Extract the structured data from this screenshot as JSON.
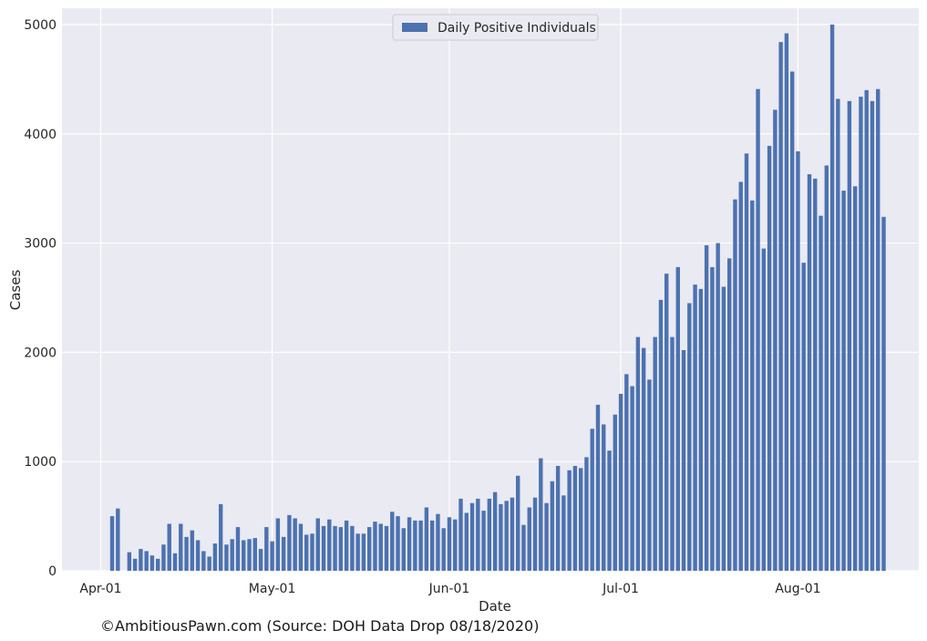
{
  "chart_data": {
    "type": "bar",
    "xlabel": "Date",
    "ylabel": "Cases",
    "legend": {
      "label": "Daily Positive Individuals",
      "position": "top-center"
    },
    "grid": true,
    "ylim": [
      0,
      5150
    ],
    "x_ticks": [
      {
        "date": "2020-04-01",
        "label": "Apr-01"
      },
      {
        "date": "2020-05-01",
        "label": "May-01"
      },
      {
        "date": "2020-06-01",
        "label": "Jun-01"
      },
      {
        "date": "2020-07-01",
        "label": "Jul-01"
      },
      {
        "date": "2020-08-01",
        "label": "Aug-01"
      }
    ],
    "y_ticks": [
      0,
      1000,
      2000,
      3000,
      4000,
      5000
    ],
    "series": [
      {
        "name": "Daily Positive Individuals",
        "color": "#4c72b0",
        "points": [
          [
            "2020-04-03",
            500
          ],
          [
            "2020-04-04",
            570
          ],
          [
            "2020-04-06",
            170
          ],
          [
            "2020-04-07",
            110
          ],
          [
            "2020-04-08",
            200
          ],
          [
            "2020-04-09",
            180
          ],
          [
            "2020-04-10",
            140
          ],
          [
            "2020-04-11",
            110
          ],
          [
            "2020-04-12",
            240
          ],
          [
            "2020-04-13",
            430
          ],
          [
            "2020-04-14",
            160
          ],
          [
            "2020-04-15",
            430
          ],
          [
            "2020-04-16",
            310
          ],
          [
            "2020-04-17",
            370
          ],
          [
            "2020-04-18",
            280
          ],
          [
            "2020-04-19",
            180
          ],
          [
            "2020-04-20",
            130
          ],
          [
            "2020-04-21",
            250
          ],
          [
            "2020-04-22",
            610
          ],
          [
            "2020-04-23",
            240
          ],
          [
            "2020-04-24",
            290
          ],
          [
            "2020-04-25",
            400
          ],
          [
            "2020-04-26",
            280
          ],
          [
            "2020-04-27",
            290
          ],
          [
            "2020-04-28",
            300
          ],
          [
            "2020-04-29",
            200
          ],
          [
            "2020-04-30",
            400
          ],
          [
            "2020-05-01",
            270
          ],
          [
            "2020-05-02",
            480
          ],
          [
            "2020-05-03",
            310
          ],
          [
            "2020-05-04",
            510
          ],
          [
            "2020-05-05",
            480
          ],
          [
            "2020-05-06",
            430
          ],
          [
            "2020-05-07",
            330
          ],
          [
            "2020-05-08",
            340
          ],
          [
            "2020-05-09",
            480
          ],
          [
            "2020-05-10",
            410
          ],
          [
            "2020-05-11",
            470
          ],
          [
            "2020-05-12",
            410
          ],
          [
            "2020-05-13",
            400
          ],
          [
            "2020-05-14",
            460
          ],
          [
            "2020-05-15",
            410
          ],
          [
            "2020-05-16",
            340
          ],
          [
            "2020-05-17",
            340
          ],
          [
            "2020-05-18",
            400
          ],
          [
            "2020-05-19",
            450
          ],
          [
            "2020-05-20",
            430
          ],
          [
            "2020-05-21",
            410
          ],
          [
            "2020-05-22",
            540
          ],
          [
            "2020-05-23",
            500
          ],
          [
            "2020-05-24",
            390
          ],
          [
            "2020-05-25",
            490
          ],
          [
            "2020-05-26",
            460
          ],
          [
            "2020-05-27",
            460
          ],
          [
            "2020-05-28",
            580
          ],
          [
            "2020-05-29",
            460
          ],
          [
            "2020-05-30",
            520
          ],
          [
            "2020-05-31",
            390
          ],
          [
            "2020-06-01",
            490
          ],
          [
            "2020-06-02",
            470
          ],
          [
            "2020-06-03",
            660
          ],
          [
            "2020-06-04",
            530
          ],
          [
            "2020-06-05",
            620
          ],
          [
            "2020-06-06",
            660
          ],
          [
            "2020-06-07",
            550
          ],
          [
            "2020-06-08",
            660
          ],
          [
            "2020-06-09",
            720
          ],
          [
            "2020-06-10",
            610
          ],
          [
            "2020-06-11",
            640
          ],
          [
            "2020-06-12",
            670
          ],
          [
            "2020-06-13",
            870
          ],
          [
            "2020-06-14",
            420
          ],
          [
            "2020-06-15",
            580
          ],
          [
            "2020-06-16",
            670
          ],
          [
            "2020-06-17",
            1030
          ],
          [
            "2020-06-18",
            620
          ],
          [
            "2020-06-19",
            820
          ],
          [
            "2020-06-20",
            960
          ],
          [
            "2020-06-21",
            690
          ],
          [
            "2020-06-22",
            920
          ],
          [
            "2020-06-23",
            960
          ],
          [
            "2020-06-24",
            940
          ],
          [
            "2020-06-25",
            1040
          ],
          [
            "2020-06-26",
            1300
          ],
          [
            "2020-06-27",
            1520
          ],
          [
            "2020-06-28",
            1340
          ],
          [
            "2020-06-29",
            1100
          ],
          [
            "2020-06-30",
            1430
          ],
          [
            "2020-07-01",
            1620
          ],
          [
            "2020-07-02",
            1800
          ],
          [
            "2020-07-03",
            1690
          ],
          [
            "2020-07-04",
            2140
          ],
          [
            "2020-07-05",
            2040
          ],
          [
            "2020-07-06",
            1750
          ],
          [
            "2020-07-07",
            2140
          ],
          [
            "2020-07-08",
            2480
          ],
          [
            "2020-07-09",
            2720
          ],
          [
            "2020-07-10",
            2140
          ],
          [
            "2020-07-11",
            2780
          ],
          [
            "2020-07-12",
            2020
          ],
          [
            "2020-07-13",
            2450
          ],
          [
            "2020-07-14",
            2620
          ],
          [
            "2020-07-15",
            2580
          ],
          [
            "2020-07-16",
            2980
          ],
          [
            "2020-07-17",
            2780
          ],
          [
            "2020-07-18",
            3000
          ],
          [
            "2020-07-19",
            2600
          ],
          [
            "2020-07-20",
            2860
          ],
          [
            "2020-07-21",
            3400
          ],
          [
            "2020-07-22",
            3560
          ],
          [
            "2020-07-23",
            3820
          ],
          [
            "2020-07-24",
            3390
          ],
          [
            "2020-07-25",
            4410
          ],
          [
            "2020-07-26",
            2950
          ],
          [
            "2020-07-27",
            3890
          ],
          [
            "2020-07-28",
            4220
          ],
          [
            "2020-07-29",
            4840
          ],
          [
            "2020-07-30",
            4920
          ],
          [
            "2020-07-31",
            4570
          ],
          [
            "2020-08-01",
            3840
          ],
          [
            "2020-08-02",
            2820
          ],
          [
            "2020-08-03",
            3630
          ],
          [
            "2020-08-04",
            3590
          ],
          [
            "2020-08-05",
            3250
          ],
          [
            "2020-08-06",
            3710
          ],
          [
            "2020-08-07",
            5000
          ],
          [
            "2020-08-08",
            4320
          ],
          [
            "2020-08-09",
            3480
          ],
          [
            "2020-08-10",
            4300
          ],
          [
            "2020-08-11",
            3520
          ],
          [
            "2020-08-12",
            4340
          ],
          [
            "2020-08-13",
            4400
          ],
          [
            "2020-08-14",
            4300
          ],
          [
            "2020-08-15",
            4410
          ],
          [
            "2020-08-16",
            3240
          ]
        ]
      }
    ]
  },
  "footer": {
    "text": "©AmbitiousPawn.com (Source: DOH Data Drop 08/18/2020)"
  },
  "colors": {
    "plot_background": "#eaeaf2",
    "grid": "#ffffff",
    "bar": "#4c72b0"
  }
}
